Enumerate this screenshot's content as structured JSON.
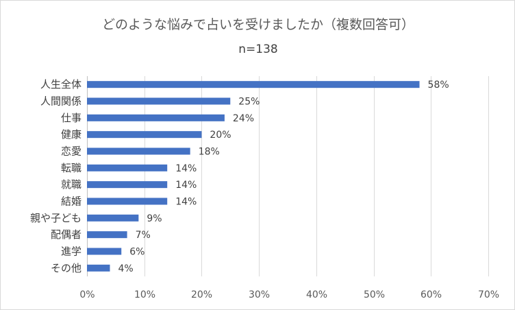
{
  "chart_data": {
    "type": "bar",
    "orientation": "horizontal",
    "title": "どのような悩みで占いを受けましたか（複数回答可）",
    "subtitle": "n=138",
    "categories": [
      "人生全体",
      "人間関係",
      "仕事",
      "健康",
      "恋愛",
      "転職",
      "就職",
      "結婚",
      "親や子ども",
      "配偶者",
      "進学",
      "その他"
    ],
    "values": [
      58,
      25,
      24,
      20,
      18,
      14,
      14,
      14,
      9,
      7,
      6,
      4
    ],
    "value_suffix": "%",
    "xlim": [
      0,
      70
    ],
    "xticks": [
      0,
      10,
      20,
      30,
      40,
      50,
      60,
      70
    ],
    "tick_labels": [
      "0%",
      "10%",
      "20%",
      "30%",
      "40%",
      "50%",
      "60%",
      "70%"
    ],
    "data_labels": [
      "58%",
      "25%",
      "24%",
      "20%",
      "18%",
      "14%",
      "14%",
      "14%",
      "9%",
      "7%",
      "6%",
      "4%"
    ],
    "bar_color": "#4472c4",
    "gridlines": true,
    "legend": "none"
  }
}
